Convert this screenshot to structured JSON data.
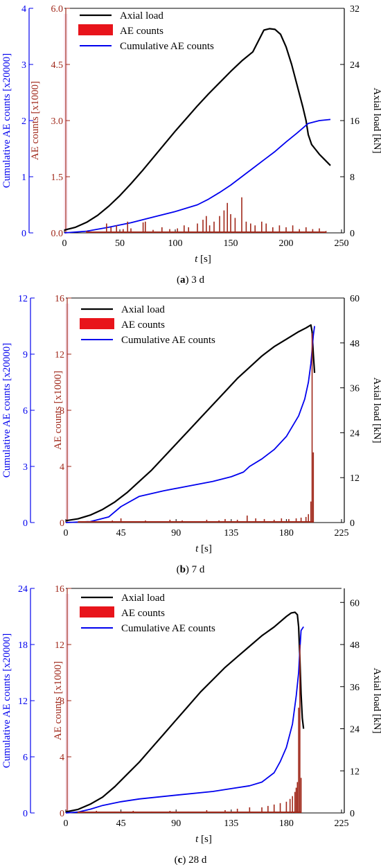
{
  "figure_title": "",
  "chart_data": [
    {
      "type": "line",
      "caption_letter": "a",
      "caption_rest": ") 3 d",
      "xlabel_var": "t",
      "xlabel_unit": " [s]",
      "x_ticks": [
        0,
        50,
        100,
        150,
        200,
        250
      ],
      "xlim": [
        0,
        250
      ],
      "axes": {
        "cum": {
          "label": "Cumulative AE counts [x20000]",
          "color": "#0000ee",
          "ticks": [
            "0",
            "1",
            "2",
            "3",
            "4"
          ],
          "lim": [
            0,
            4
          ]
        },
        "ae": {
          "label": "AE counts [x1000]",
          "color": "#a0281a",
          "ticks": [
            "0.0",
            "1.5",
            "3.0",
            "4.5",
            "6.0"
          ],
          "lim": [
            0,
            6
          ]
        },
        "load": {
          "label": "Axial load [kN]",
          "color": "#000000",
          "ticks": [
            "0",
            "8",
            "16",
            "24",
            "32"
          ],
          "lim": [
            0,
            32
          ]
        }
      },
      "legend": [
        "Axial load",
        "AE counts",
        "Cumulative  AE counts"
      ],
      "series": [
        {
          "name": "Axial load",
          "axis": "load",
          "color": "#000000",
          "x": [
            0,
            10,
            20,
            30,
            40,
            50,
            60,
            70,
            80,
            90,
            100,
            110,
            120,
            130,
            140,
            150,
            160,
            170,
            180,
            185,
            190,
            195,
            200,
            205,
            210,
            215,
            218,
            220,
            223,
            226,
            230,
            235,
            240
          ],
          "y": [
            0.4,
            0.8,
            1.5,
            2.5,
            3.8,
            5.3,
            7.0,
            8.8,
            10.7,
            12.6,
            14.5,
            16.3,
            18.1,
            19.8,
            21.4,
            23.0,
            24.5,
            25.8,
            28.9,
            29.1,
            29.0,
            28.3,
            26.5,
            24.0,
            21.0,
            18.0,
            16.0,
            14.0,
            12.6,
            12.0,
            11.2,
            10.4,
            9.6
          ]
        },
        {
          "name": "Cumulative  AE counts",
          "axis": "cum",
          "color": "#0000ee",
          "x": [
            0,
            20,
            40,
            60,
            80,
            100,
            120,
            130,
            140,
            150,
            160,
            170,
            180,
            190,
            200,
            210,
            220,
            230,
            240
          ],
          "y": [
            0.0,
            0.03,
            0.1,
            0.18,
            0.28,
            0.38,
            0.5,
            0.6,
            0.72,
            0.85,
            1.0,
            1.15,
            1.3,
            1.45,
            1.62,
            1.78,
            1.95,
            2.0,
            2.02
          ]
        },
        {
          "name": "AE counts",
          "axis": "ae",
          "color": "#a0281a",
          "kind": "spikes",
          "x": [
            20,
            38,
            42,
            47,
            53,
            57,
            60,
            71,
            73,
            80,
            88,
            95,
            102,
            108,
            112,
            120,
            125,
            128,
            131,
            135,
            140,
            144,
            147,
            150,
            154,
            160,
            164,
            168,
            172,
            178,
            182,
            188,
            194,
            200,
            206,
            212,
            218,
            224,
            230,
            236
          ],
          "y": [
            0.05,
            0.25,
            0.15,
            0.2,
            0.1,
            0.3,
            0.12,
            0.28,
            0.3,
            0.08,
            0.15,
            0.1,
            0.12,
            0.2,
            0.15,
            0.25,
            0.35,
            0.45,
            0.2,
            0.3,
            0.45,
            0.6,
            0.8,
            0.5,
            0.4,
            0.95,
            0.3,
            0.25,
            0.2,
            0.3,
            0.25,
            0.15,
            0.2,
            0.15,
            0.2,
            0.1,
            0.15,
            0.1,
            0.12,
            0.05
          ]
        }
      ]
    },
    {
      "type": "line",
      "caption_letter": "b",
      "caption_rest": ") 7 d",
      "xlabel_var": "t",
      "xlabel_unit": " [s]",
      "x_ticks": [
        0,
        45,
        90,
        135,
        180,
        225
      ],
      "xlim": [
        0,
        225
      ],
      "axes": {
        "cum": {
          "label": "Cumulative AE counts [x20000]",
          "color": "#0000ee",
          "ticks": [
            "0",
            "3",
            "6",
            "9",
            "12"
          ],
          "lim": [
            0,
            12
          ]
        },
        "ae": {
          "label": "AE counts [x1000]",
          "color": "#a0281a",
          "ticks": [
            "0",
            "4",
            "8",
            "12",
            "16"
          ],
          "lim": [
            0,
            16
          ]
        },
        "load": {
          "label": "Axial load [kN]",
          "color": "#000000",
          "ticks": [
            "0",
            "12",
            "24",
            "36",
            "48",
            "60"
          ],
          "lim": [
            0,
            60
          ]
        }
      },
      "legend": [
        "Axial load",
        "AE counts",
        "Cumulative AE counts"
      ],
      "series": [
        {
          "name": "Axial load",
          "axis": "load",
          "color": "#000000",
          "x": [
            0,
            10,
            20,
            30,
            40,
            50,
            60,
            70,
            80,
            90,
            100,
            110,
            120,
            130,
            140,
            150,
            160,
            170,
            180,
            190,
            196,
            200,
            201,
            202,
            203
          ],
          "y": [
            0.5,
            1.0,
            2.0,
            3.5,
            5.5,
            8.0,
            11.0,
            14.0,
            17.5,
            21.0,
            24.5,
            28.0,
            31.5,
            35.0,
            38.5,
            41.5,
            44.5,
            47.0,
            49.0,
            51.0,
            52.0,
            52.8,
            51.0,
            45.0,
            40.0
          ]
        },
        {
          "name": "Cumulative AE counts",
          "axis": "cum",
          "color": "#0000ee",
          "x": [
            0,
            20,
            35,
            45,
            60,
            80,
            100,
            120,
            135,
            145,
            150,
            160,
            170,
            180,
            190,
            195,
            198,
            200,
            202,
            203
          ],
          "y": [
            0.0,
            0.05,
            0.3,
            0.85,
            1.4,
            1.7,
            1.95,
            2.2,
            2.45,
            2.7,
            3.0,
            3.4,
            3.9,
            4.6,
            5.7,
            6.6,
            7.5,
            8.5,
            10.0,
            10.5
          ]
        },
        {
          "name": "AE counts",
          "axis": "ae",
          "color": "#a0281a",
          "kind": "spikes",
          "x": [
            10,
            25,
            38,
            45,
            55,
            65,
            75,
            85,
            95,
            105,
            115,
            125,
            130,
            140,
            148,
            155,
            162,
            170,
            176,
            182,
            188,
            192,
            196,
            198,
            200,
            201,
            202
          ],
          "y": [
            0.05,
            0.1,
            0.15,
            0.3,
            0.1,
            0.15,
            0.1,
            0.2,
            0.15,
            0.1,
            0.2,
            0.15,
            0.25,
            0.2,
            0.5,
            0.3,
            0.25,
            0.2,
            0.3,
            0.25,
            0.3,
            0.35,
            0.4,
            0.6,
            1.5,
            13.5,
            5.0
          ]
        }
      ]
    },
    {
      "type": "line",
      "caption_letter": "c",
      "caption_rest": ") 28 d",
      "xlabel_var": "t",
      "xlabel_unit": " [s]",
      "x_ticks": [
        0,
        45,
        90,
        135,
        180,
        225
      ],
      "xlim": [
        0,
        225
      ],
      "axes": {
        "cum": {
          "label": "Cumulative AE counts [x20000]",
          "color": "#0000ee",
          "ticks": [
            "0",
            "6",
            "12",
            "18",
            "24"
          ],
          "lim": [
            0,
            24
          ]
        },
        "ae": {
          "label": "AE counts [x1000]",
          "color": "#a0281a",
          "ticks": [
            "0",
            "4",
            "8",
            "12",
            "16"
          ],
          "lim": [
            0,
            16
          ]
        },
        "load": {
          "label": "Axial load [kN]",
          "color": "#000000",
          "ticks": [
            "0",
            "12",
            "24",
            "36",
            "48",
            "60"
          ],
          "lim": [
            0,
            64
          ]
        }
      },
      "legend": [
        "Axial load",
        "AE counts",
        "Cumulative  AE counts"
      ],
      "series": [
        {
          "name": "Axial load",
          "axis": "load",
          "color": "#000000",
          "x": [
            0,
            10,
            20,
            30,
            40,
            50,
            60,
            70,
            80,
            90,
            100,
            110,
            120,
            130,
            140,
            150,
            160,
            170,
            180,
            184,
            187,
            189,
            190,
            191,
            192,
            193,
            194
          ],
          "y": [
            0.3,
            1.0,
            2.5,
            4.5,
            7.5,
            11.0,
            14.5,
            18.5,
            22.5,
            26.5,
            30.5,
            34.5,
            38.0,
            41.5,
            44.5,
            47.5,
            50.5,
            53.0,
            56.0,
            57.0,
            57.2,
            56.5,
            53.0,
            44.0,
            34.0,
            27.0,
            24.0
          ]
        },
        {
          "name": "Cumulative  AE counts",
          "axis": "cum",
          "color": "#0000ee",
          "x": [
            0,
            10,
            20,
            30,
            45,
            60,
            90,
            120,
            135,
            150,
            160,
            170,
            175,
            180,
            185,
            188,
            190,
            191,
            192,
            194
          ],
          "y": [
            0.0,
            0.1,
            0.4,
            0.8,
            1.2,
            1.5,
            1.9,
            2.3,
            2.6,
            2.9,
            3.3,
            4.3,
            5.5,
            7.0,
            9.5,
            12.5,
            15.0,
            17.5,
            19.5,
            19.9
          ]
        },
        {
          "name": "AE counts",
          "axis": "ae",
          "color": "#a0281a",
          "kind": "spikes",
          "x": [
            10,
            25,
            40,
            55,
            70,
            85,
            100,
            115,
            130,
            140,
            150,
            160,
            165,
            170,
            175,
            180,
            183,
            185,
            187,
            188,
            189,
            190,
            191,
            192
          ],
          "y": [
            0.1,
            0.15,
            0.1,
            0.15,
            0.1,
            0.15,
            0.1,
            0.2,
            0.2,
            0.3,
            0.4,
            0.4,
            0.5,
            0.6,
            0.7,
            0.8,
            1.0,
            1.2,
            1.5,
            1.8,
            2.2,
            7.5,
            12.0,
            2.5
          ]
        }
      ]
    }
  ]
}
